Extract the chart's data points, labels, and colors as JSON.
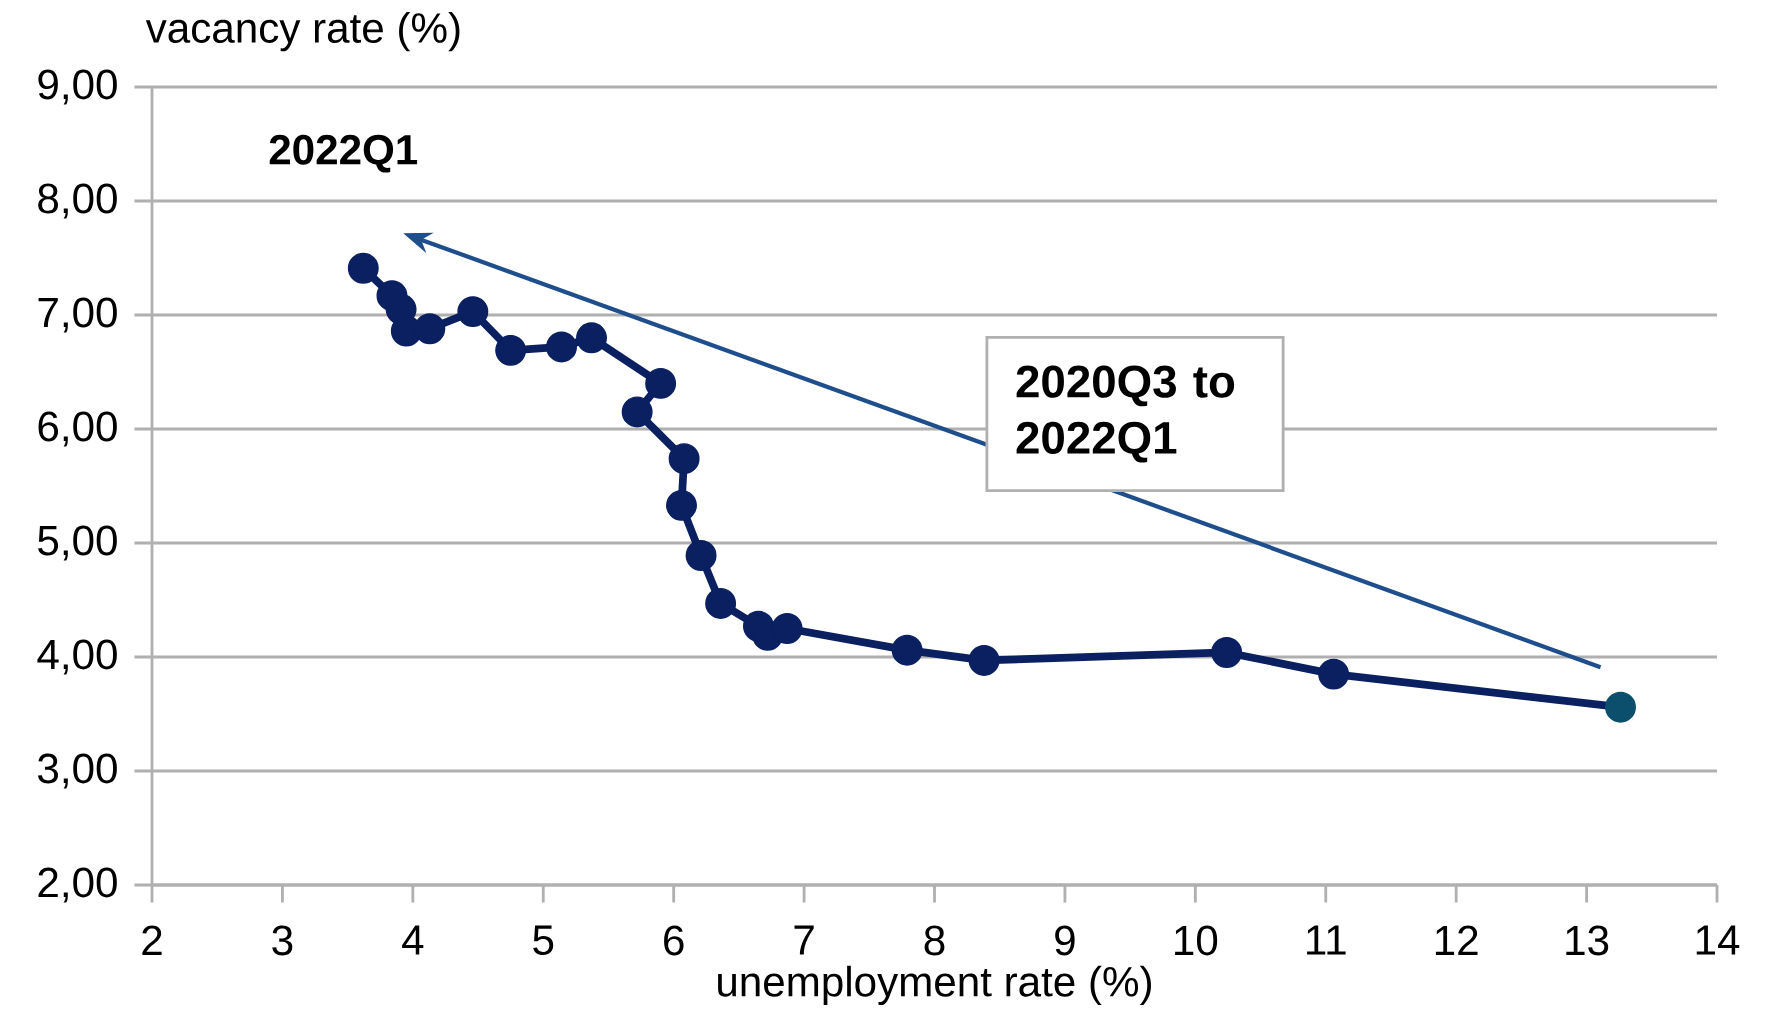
{
  "chart_data": {
    "type": "line",
    "xlabel": "unemployment rate (%)",
    "ylabel": "vacancy rate (%)",
    "xlim": [
      2,
      14
    ],
    "xticks": [
      2,
      3,
      4,
      5,
      6,
      7,
      8,
      9,
      10,
      11,
      12,
      13,
      14
    ],
    "ylim": [
      2,
      9
    ],
    "yticks": [
      {
        "value": 2,
        "label": "2,00"
      },
      {
        "value": 3,
        "label": "3,00"
      },
      {
        "value": 4,
        "label": "4,00"
      },
      {
        "value": 5,
        "label": "5,00"
      },
      {
        "value": 6,
        "label": "6,00"
      },
      {
        "value": 7,
        "label": "7,00"
      },
      {
        "value": 8,
        "label": "8,00"
      },
      {
        "value": 9,
        "label": "9,00"
      }
    ],
    "grid": "y",
    "marker": "circle",
    "line_style": "solid",
    "annotations": [
      "2022Q1",
      "2020Q3 to 2022Q1"
    ],
    "series": [
      {
        "color": "#0a2060",
        "x": [
          3.62,
          3.84,
          3.91,
          3.95,
          4.13,
          4.46,
          4.75,
          5.14,
          5.37,
          5.9,
          5.72,
          6.08,
          6.06,
          6.21,
          6.36,
          6.65,
          6.72,
          6.87,
          7.79,
          8.38,
          10.24,
          11.06,
          13.26
        ],
        "values": [
          7.41,
          7.17,
          7.05,
          6.86,
          6.88,
          7.03,
          6.69,
          6.72,
          6.8,
          6.4,
          6.15,
          5.74,
          5.33,
          4.89,
          4.47,
          4.27,
          4.19,
          4.25,
          4.06,
          3.97,
          4.04,
          3.85,
          3.56
        ],
        "colors": [
          "#0a2060",
          "#0a2060",
          "#0a2060",
          "#0a2060",
          "#0a2060",
          "#0a2060",
          "#0a2060",
          "#0a2060",
          "#0a2060",
          "#0a2060",
          "#0a2060",
          "#0a2060",
          "#0a2060",
          "#0a2060",
          "#0a2060",
          "#0a2060",
          "#0a2060",
          "#0a2060",
          "#0a2060",
          "#0a2060",
          "#0a2060",
          "#0a2060",
          "#0b4f6c"
        ]
      }
    ]
  }
}
